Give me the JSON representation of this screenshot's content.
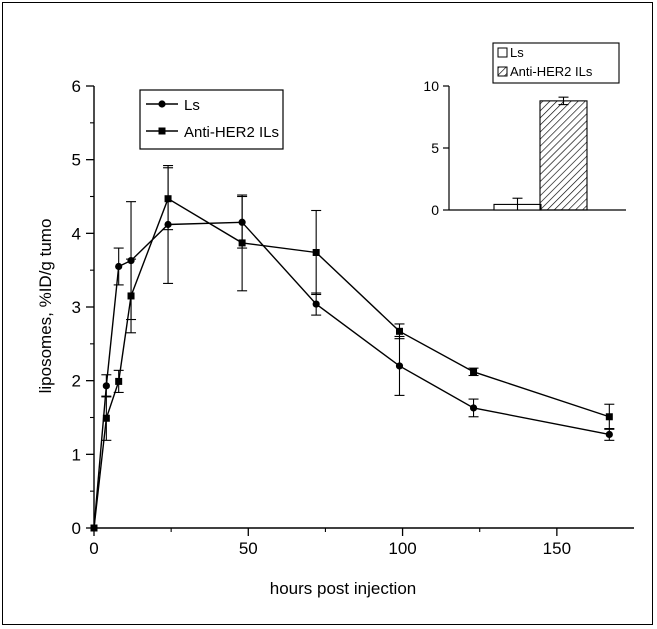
{
  "chart_data": [
    {
      "type": "line",
      "xlabel": "hours post injection",
      "ylabel": "liposomes, %ID/g tumo",
      "xlim": [
        0,
        175
      ],
      "ylim": [
        0,
        6
      ],
      "x_ticks": [
        "0",
        "50",
        "100",
        "150"
      ],
      "y_ticks": [
        "0",
        "1",
        "2",
        "3",
        "4",
        "5",
        "6"
      ],
      "legend_position": "top-left",
      "series": [
        {
          "name": "Ls",
          "marker": "circle",
          "x": [
            0,
            4,
            8,
            12,
            24,
            48,
            72,
            99,
            123,
            167
          ],
          "y": [
            0.0,
            1.93,
            3.55,
            3.63,
            4.12,
            4.15,
            3.04,
            2.2,
            1.63,
            1.27
          ],
          "error": [
            0.0,
            0.15,
            0.25,
            0.8,
            0.8,
            0.35,
            0.15,
            0.4,
            0.12,
            0.08
          ]
        },
        {
          "name": "Anti-HER2 ILs",
          "marker": "square",
          "x": [
            0,
            4,
            8,
            12,
            24,
            48,
            72,
            99,
            123,
            167
          ],
          "y": [
            0.0,
            1.49,
            1.99,
            3.15,
            4.47,
            3.87,
            3.74,
            2.67,
            2.12,
            1.51
          ],
          "error": [
            0.0,
            0.3,
            0.15,
            0.5,
            0.42,
            0.65,
            0.57,
            0.1,
            0.05,
            0.17
          ]
        }
      ]
    },
    {
      "type": "bar",
      "categories": [
        "Ls",
        "Anti-HER2 ILs"
      ],
      "values": [
        0.45,
        8.8
      ],
      "errors": [
        0.5,
        0.3
      ],
      "ylim": [
        0,
        10
      ],
      "y_ticks": [
        "0",
        "5",
        "10"
      ],
      "legend_position": "top",
      "fills": [
        "empty",
        "diagonal-hatch"
      ]
    }
  ]
}
